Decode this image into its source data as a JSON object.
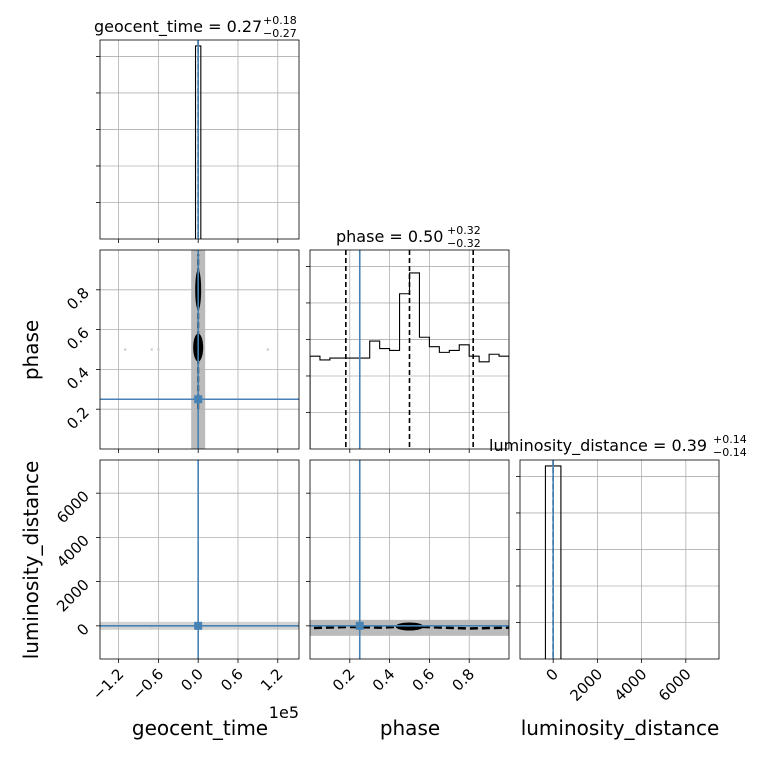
{
  "chart_data": {
    "type": "corner",
    "parameters": [
      "geocent_time",
      "phase",
      "luminosity_distance"
    ],
    "axis_ranges": {
      "geocent_time": [
        -148000,
        152000
      ],
      "phase": [
        0.0,
        1.0
      ],
      "luminosity_distance": [
        -1500,
        7500
      ]
    },
    "grid": true,
    "diagonal_titles": [
      {
        "name": "geocent_time",
        "value": "0.27",
        "plus": "+0.18",
        "minus": "−0.27"
      },
      {
        "name": "phase",
        "value": "0.50",
        "plus": "+0.32",
        "minus": "−0.32"
      },
      {
        "name": "luminosity_distance",
        "value": "0.39",
        "plus": "+0.14",
        "minus": "−0.14"
      }
    ],
    "x_ticks": {
      "geocent_time": {
        "values": [
          -120000,
          -60000,
          0,
          60000,
          120000
        ],
        "labels": [
          "−1.2",
          "−0.6",
          "0.0",
          "0.6",
          "1.2"
        ],
        "offset_label": "1e5"
      },
      "phase": {
        "values": [
          0.2,
          0.4,
          0.6,
          0.8
        ],
        "labels": [
          "0.2",
          "0.4",
          "0.6",
          "0.8"
        ]
      },
      "luminosity_distance": {
        "values": [
          0,
          2000,
          4000,
          6000
        ],
        "labels": [
          "0",
          "2000",
          "4000",
          "6000"
        ]
      }
    },
    "y_ticks": {
      "phase": {
        "values": [
          0.2,
          0.4,
          0.6,
          0.8
        ],
        "labels": [
          "0.2",
          "0.4",
          "0.6",
          "0.8"
        ]
      },
      "luminosity_distance": {
        "values": [
          0,
          2000,
          4000,
          6000
        ],
        "labels": [
          "0",
          "2000",
          "4000",
          "6000"
        ]
      }
    },
    "axis_labels": {
      "x": [
        "geocent_time",
        "phase",
        "luminosity_distance"
      ],
      "y": [
        "phase",
        "luminosity_distance"
      ]
    },
    "truths": {
      "geocent_time": 0,
      "phase": 0.25,
      "luminosity_distance": 0
    },
    "truth_color": "#4682b4",
    "quantile_lines": {
      "geocent_time": [
        0
      ],
      "phase": [
        0.18,
        0.5,
        0.82
      ],
      "luminosity_distance": [
        0
      ]
    },
    "histograms": {
      "geocent_time": {
        "bin_edges": [
          -4000,
          4000
        ],
        "counts": [
          1.0
        ]
      },
      "phase": {
        "bin_edges": [
          0.0,
          0.05,
          0.1,
          0.15,
          0.2,
          0.25,
          0.3,
          0.35,
          0.4,
          0.45,
          0.5,
          0.55,
          0.6,
          0.65,
          0.7,
          0.75,
          0.8,
          0.85,
          0.9,
          0.95,
          1.0
        ],
        "counts": [
          0.47,
          0.45,
          0.46,
          0.46,
          0.46,
          0.46,
          0.55,
          0.51,
          0.5,
          0.8,
          0.91,
          0.57,
          0.52,
          0.49,
          0.5,
          0.53,
          0.47,
          0.44,
          0.48,
          0.47
        ]
      },
      "luminosity_distance": {
        "bin_edges": [
          -350,
          350
        ],
        "counts": [
          1.0
        ]
      }
    },
    "scatter_points": {
      "phase_vs_geocent_time": [
        [
          -110000,
          0.5
        ],
        [
          -70000,
          0.5
        ],
        [
          105000,
          0.5
        ],
        [
          -60000,
          0.5
        ]
      ],
      "luminosity_distance_vs_geocent_time": [
        [
          -70000,
          -50
        ]
      ]
    },
    "contour_lines": {
      "phase_vs_geocent_time": [
        [
          0,
          0.2
        ],
        [
          0,
          0.98
        ]
      ],
      "luminosity_distance_vs_phase": [
        [
          0.02,
          -100
        ],
        [
          0.2,
          -50
        ],
        [
          0.35,
          -80
        ],
        [
          0.5,
          -20
        ],
        [
          0.6,
          -60
        ],
        [
          0.8,
          -120
        ],
        [
          1.0,
          -80
        ]
      ]
    },
    "colors": {
      "truth": "#4682b4",
      "band": "#b4b4b4",
      "grid": "#b0b0b0"
    }
  }
}
